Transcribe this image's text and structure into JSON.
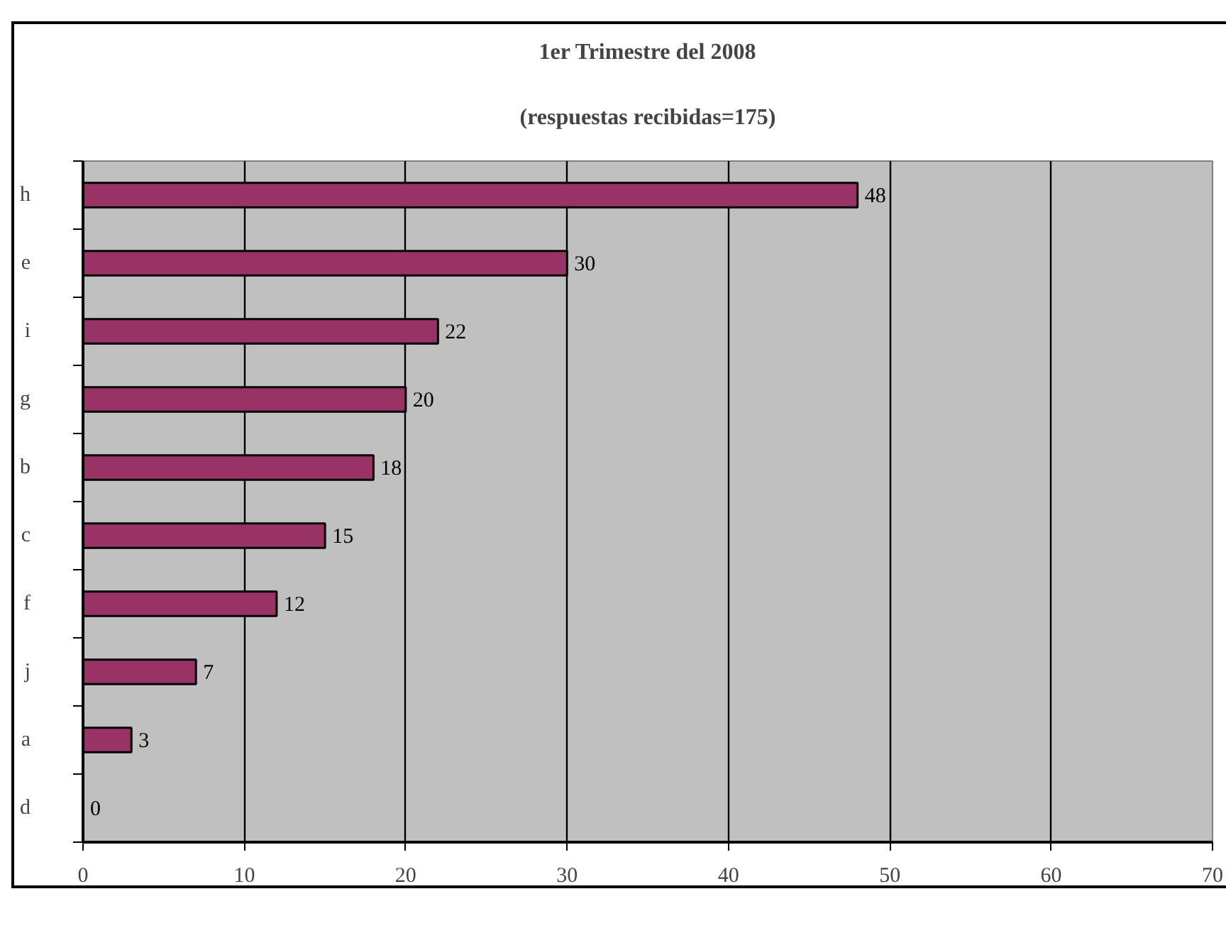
{
  "chart_data": {
    "type": "bar",
    "orientation": "horizontal",
    "title": "1er Trimestre del 2008",
    "subtitle": "(respuestas recibidas=175)",
    "categories": [
      "h",
      "e",
      "i",
      "g",
      "b",
      "c",
      "f",
      "j",
      "a",
      "d"
    ],
    "values": [
      48,
      30,
      22,
      20,
      18,
      15,
      12,
      7,
      3,
      0
    ],
    "color": "#993366",
    "xlim": [
      0,
      70
    ],
    "xticks": [
      0,
      10,
      20,
      30,
      40,
      50,
      60,
      70
    ],
    "grid": "x",
    "data_labels": true
  }
}
